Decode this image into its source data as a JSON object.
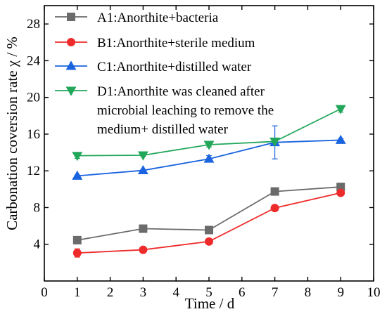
{
  "chart_data": {
    "type": "line",
    "xlabel": "Time / d",
    "ylabel": "Carbonation coversion rate  χ / %",
    "xlim": [
      0,
      10
    ],
    "ylim": [
      0,
      30
    ],
    "xticks": [
      0,
      1,
      2,
      3,
      4,
      5,
      6,
      7,
      8,
      9,
      10
    ],
    "yticks": [
      4,
      8,
      12,
      16,
      20,
      24,
      28
    ],
    "legend_position": "top-left",
    "series": [
      {
        "name": "A1:Anorthite+bacteria",
        "color": "#6b6b6b",
        "marker": "square",
        "x": [
          1,
          3,
          5,
          7,
          9
        ],
        "y": [
          4.45,
          5.7,
          5.55,
          9.75,
          10.25
        ],
        "err": [
          0.2,
          0.15,
          0.15,
          0.4,
          0.15
        ]
      },
      {
        "name": "B1:Anorthite+sterile medium",
        "color": "#ee2b2b",
        "marker": "circle",
        "x": [
          1,
          3,
          5,
          7,
          9
        ],
        "y": [
          3.05,
          3.4,
          4.3,
          7.95,
          9.6
        ],
        "err": [
          0.45,
          0.1,
          0.1,
          0.15,
          0.1
        ]
      },
      {
        "name": "C1:Anorthite+distilled water",
        "color": "#1a64e0",
        "marker": "triangle-up",
        "x": [
          1,
          3,
          5,
          7,
          9
        ],
        "y": [
          11.45,
          12.05,
          13.3,
          15.1,
          15.35
        ],
        "err": [
          0.1,
          0.1,
          0.35,
          1.8,
          0.15
        ]
      },
      {
        "name": "D1:Anorthite was cleaned after microbial leaching to remove the medium+ distilled water",
        "legend_lines": [
          "D1:Anorthite was cleaned after",
          "microbial leaching to remove the",
          "medium+ distilled water"
        ],
        "color": "#22a75a",
        "marker": "triangle-down",
        "x": [
          1,
          3,
          5,
          7,
          9
        ],
        "y": [
          13.65,
          13.7,
          14.85,
          15.2,
          18.75
        ],
        "err": [
          0.3,
          0.1,
          0.25,
          0.1,
          0.35
        ]
      }
    ]
  }
}
